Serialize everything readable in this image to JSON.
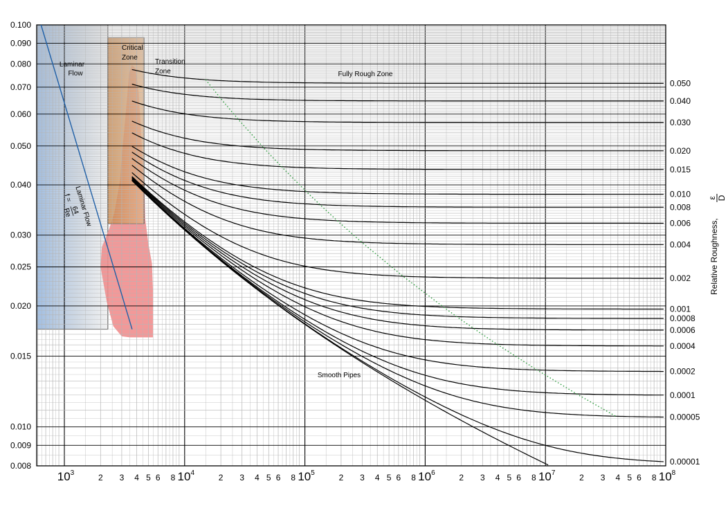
{
  "chart_data": {
    "type": "line",
    "x_scale": "log",
    "y_scale": "log",
    "xlim": [
      200,
      100000000
    ],
    "ylim": [
      0.008,
      0.1
    ],
    "grid": true,
    "y_ticks": [
      {
        "value": 0.1,
        "label": "0.100"
      },
      {
        "value": 0.09,
        "label": "0.090"
      },
      {
        "value": 0.08,
        "label": "0.080"
      },
      {
        "value": 0.07,
        "label": "0.070"
      },
      {
        "value": 0.06,
        "label": "0.060"
      },
      {
        "value": 0.05,
        "label": "0.050"
      },
      {
        "value": 0.04,
        "label": "0.040"
      },
      {
        "value": 0.03,
        "label": "0.030"
      },
      {
        "value": 0.025,
        "label": "0.025"
      },
      {
        "value": 0.02,
        "label": "0.020"
      },
      {
        "value": 0.015,
        "label": "0.015"
      },
      {
        "value": 0.01,
        "label": "0.010"
      },
      {
        "value": 0.009,
        "label": "0.009"
      },
      {
        "value": 0.008,
        "label": "0.008"
      }
    ],
    "x_decade_labels": [
      {
        "value": 1000,
        "base": "10",
        "exp": "3"
      },
      {
        "value": 10000,
        "base": "10",
        "exp": "4"
      },
      {
        "value": 100000,
        "base": "10",
        "exp": "5"
      },
      {
        "value": 1000000,
        "base": "10",
        "exp": "6"
      },
      {
        "value": 10000000,
        "base": "10",
        "exp": "7"
      },
      {
        "value": 100000000,
        "base": "10",
        "exp": "8"
      }
    ],
    "x_minor_labels": [
      "2",
      "3",
      "4",
      "5",
      "6",
      "8"
    ],
    "right_axis_label": "Relative Roughness,",
    "right_axis_fraction": {
      "num": "ε",
      "den": "D"
    },
    "roughness_labels": [
      "0.050",
      "0.040",
      "0.030",
      "0.020",
      "0.015",
      "0.010",
      "0.008",
      "0.006",
      "0.004",
      "0.002",
      "0.001",
      "0.0008",
      "0.0006",
      "0.0004",
      "0.0002",
      "0.0001",
      "0.00005",
      "0.00001"
    ],
    "roughness_values": [
      0.05,
      0.04,
      0.03,
      0.02,
      0.015,
      0.01,
      0.008,
      0.006,
      0.004,
      0.002,
      0.001,
      0.0008,
      0.0006,
      0.0004,
      0.0002,
      0.0001,
      5e-05,
      1e-05,
      0
    ],
    "zones": {
      "laminar": {
        "line1": "Laminar",
        "line2": "Flow",
        "re_range": [
          200,
          2300
        ],
        "f_range": [
          0.0175,
          0.1
        ]
      },
      "critical": {
        "line1": "Critical",
        "line2": "Zone",
        "re_range": [
          2300,
          4600
        ],
        "f_range": [
          0.032,
          0.093
        ]
      },
      "transition": {
        "line1": "Transition",
        "line2": "Zone"
      },
      "fully_rough": {
        "label": "Fully Rough Zone"
      },
      "smooth": {
        "label": "Smooth Pipes"
      }
    },
    "laminar_line": {
      "label": "Laminar Flow",
      "formula_lhs": "f =",
      "formula_num": "64",
      "formula_den": "Re",
      "re_range": [
        640,
        3658
      ]
    },
    "colors": {
      "laminar_fill": "#a9c4e2",
      "critical_fill": "#e0975a",
      "transition_region": "#f08b8b",
      "laminar_line": "#1f5fa6",
      "curve": "#000000",
      "boundary": "#2a9a3a",
      "grid": "#b5b5b5"
    }
  }
}
